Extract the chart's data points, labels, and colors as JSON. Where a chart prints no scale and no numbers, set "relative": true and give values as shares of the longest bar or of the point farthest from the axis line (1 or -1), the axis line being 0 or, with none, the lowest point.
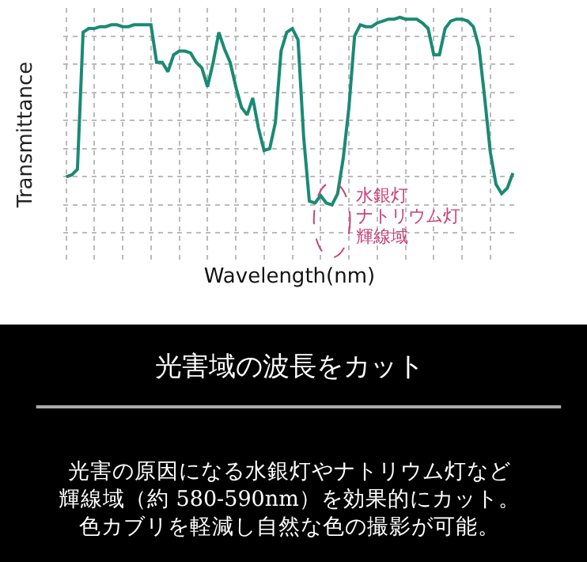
{
  "chart_data": {
    "type": "line",
    "relative": true,
    "grid": true,
    "line_style": "solid",
    "marker": "none",
    "title": "光害域の波長をカット",
    "subtitle": "光害の原因になる水銀灯やナトリウム灯など輝線域（約 580-590nm）を効果的にカット。色カブリを軽減し自然な色の撮影が可能。",
    "xlabel": "Wavelength(nm)",
    "ylabel": "Transmittance",
    "annotations": [
      "水銀灯",
      "ナトリウム灯",
      "輝線域"
    ],
    "categories": [
      null,
      null,
      null,
      null,
      null,
      null,
      null,
      null,
      null,
      null,
      null,
      null,
      null,
      null,
      null,
      null,
      null,
      null,
      null,
      null,
      null,
      null,
      null,
      null,
      null,
      null,
      null,
      null,
      null,
      null,
      null,
      null,
      null,
      null,
      null,
      null,
      null,
      null,
      null,
      null,
      null,
      null,
      null,
      null,
      null,
      null,
      null,
      null,
      null,
      null,
      null,
      null,
      null,
      null,
      null,
      null,
      null,
      null,
      null,
      null,
      null,
      null,
      null,
      null,
      null,
      null,
      null,
      null,
      null,
      null,
      null,
      null,
      null,
      null,
      null,
      null,
      null,
      null,
      null,
      null
    ],
    "series": [
      {
        "color": "#1a8a74",
        "values": [
          0.15,
          0.16,
          0.19,
          0.92,
          0.94,
          0.94,
          0.95,
          0.95,
          0.96,
          0.96,
          0.95,
          0.95,
          0.96,
          0.96,
          0.96,
          0.96,
          0.76,
          0.76,
          0.71,
          0.8,
          0.82,
          0.82,
          0.81,
          0.76,
          0.73,
          0.63,
          0.76,
          0.92,
          0.83,
          0.76,
          0.63,
          0.52,
          0.48,
          0.57,
          0.41,
          0.29,
          0.3,
          0.44,
          0.82,
          0.92,
          0.94,
          0.88,
          0.36,
          0.02,
          0.01,
          0.05,
          0.01,
          0,
          0.06,
          0.25,
          0.52,
          0.9,
          0.96,
          0.95,
          0.95,
          0.97,
          0.98,
          0.99,
          0.99,
          1.0,
          0.99,
          0.99,
          0.99,
          0.97,
          0.94,
          0.8,
          0.8,
          0.94,
          0.98,
          0.99,
          0.99,
          0.98,
          0.95,
          0.84,
          0.57,
          0.28,
          0.11,
          0.06,
          0.09,
          0.17
        ]
      }
    ]
  }
}
